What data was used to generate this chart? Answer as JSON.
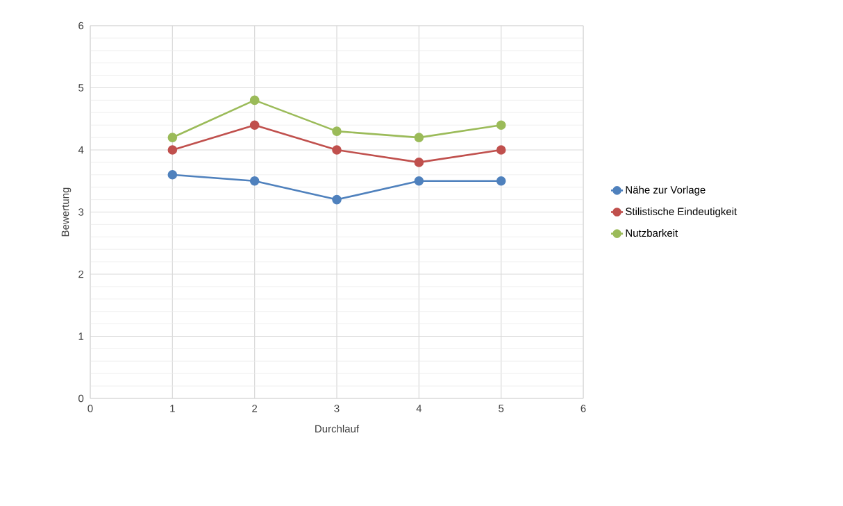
{
  "chart_data": {
    "type": "line",
    "xlabel": "Durchlauf",
    "ylabel": "Bewertung",
    "x": [
      1,
      2,
      3,
      4,
      5
    ],
    "series": [
      {
        "name": "Nähe zur Vorlage",
        "color": "#4f81bd",
        "values": [
          3.6,
          3.5,
          3.2,
          3.5,
          3.5
        ]
      },
      {
        "name": "Stilistische Eindeutigkeit",
        "color": "#c0504d",
        "values": [
          4.0,
          4.4,
          4.0,
          3.8,
          4.0
        ]
      },
      {
        "name": "Nutzbarkeit",
        "color": "#9bbb59",
        "values": [
          4.2,
          4.8,
          4.3,
          4.2,
          4.4
        ]
      }
    ],
    "xlim": [
      0,
      6
    ],
    "ylim": [
      0,
      6
    ],
    "xticks": [
      0,
      1,
      2,
      3,
      4,
      5,
      6
    ],
    "yticks": [
      0,
      1,
      2,
      3,
      4,
      5,
      6
    ],
    "grid": true,
    "legend": "right",
    "marker": "circle",
    "line_style": "solid"
  }
}
